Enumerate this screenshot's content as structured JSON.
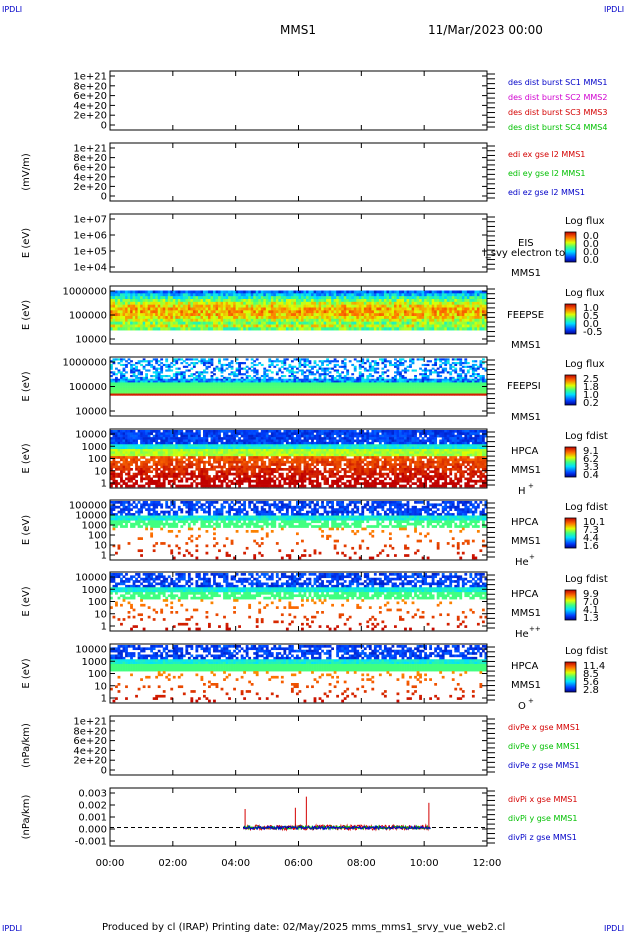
{
  "corner_marks": {
    "top_left": "IPDLI",
    "top_right": "IPDLI",
    "bottom_left": "IPDLI",
    "bottom_right": "IPDLI"
  },
  "header": {
    "spacecraft": "MMS1",
    "date": "11/Mar/2023 00:00"
  },
  "footer": {
    "text": "Produced by cl (IRAP)   Printing date: 02/May/2025   mms_mms1_srvy_vue_web2.cl"
  },
  "time_axis": {
    "ticks": [
      "00:00",
      "02:00",
      "04:00",
      "06:00",
      "08:00",
      "10:00",
      "12:00"
    ],
    "range_hours": [
      0,
      12
    ]
  },
  "colors": {
    "red": "#d40000",
    "green": "#00c000",
    "blue": "#0000c8",
    "magenta": "#d000d0",
    "dashed": "#000000"
  },
  "panels": [
    {
      "id": "des-dist",
      "yticks": [
        "1e+21",
        "8e+20",
        "6e+20",
        "4e+20",
        "2e+20",
        "0"
      ],
      "ylabel": "",
      "legend": [
        {
          "text": "des dist burst SC1 MMS1",
          "color": "#0000c8"
        },
        {
          "text": "des dist burst SC2 MMS2",
          "color": "#d000d0"
        },
        {
          "text": "des dist burst SC3 MMS3",
          "color": "#d40000"
        },
        {
          "text": "des dist burst SC4 MMS4",
          "color": "#00c000"
        }
      ]
    },
    {
      "id": "edi",
      "yticks": [
        "1e+21",
        "8e+20",
        "6e+20",
        "4e+20",
        "2e+20",
        "0"
      ],
      "ylabel": "(mV/m)",
      "legend": [
        {
          "text": "edi ex gse l2 MMS1",
          "color": "#d40000"
        },
        {
          "text": "edi ey gse l2 MMS1",
          "color": "#00c000"
        },
        {
          "text": "edi ez gse l2 MMS1",
          "color": "#0000c8"
        }
      ]
    },
    {
      "id": "eis",
      "yticks": [
        "1e+07",
        "1e+06",
        "1e+05",
        "1e+04"
      ],
      "ylabel": "E (eV)",
      "name_lines": [
        "EIS",
        "MMS1"
      ],
      "overlay_text": "l_svy electron to",
      "cbar_title": "Log flux",
      "cbar_ticks": [
        "0.0",
        "0.0",
        "0.0",
        "0.0"
      ]
    },
    {
      "id": "feepse",
      "yticks": [
        "1000000",
        "100000",
        "10000"
      ],
      "ylabel": "E (eV)",
      "name_lines": [
        "FEEPSE",
        "MMS1"
      ],
      "cbar_title": "Log flux",
      "cbar_ticks": [
        "1.0",
        "0.5",
        "0.0",
        "-0.5"
      ]
    },
    {
      "id": "feepsi",
      "yticks": [
        "1000000",
        "100000",
        "10000"
      ],
      "ylabel": "E (eV)",
      "name_lines": [
        "FEEPSI",
        "MMS1"
      ],
      "cbar_title": "Log flux",
      "cbar_ticks": [
        "2.5",
        "1.8",
        "1.0",
        "0.2"
      ]
    },
    {
      "id": "hpca-h",
      "yticks": [
        "10000",
        "1000",
        "100",
        "10",
        "1"
      ],
      "ylabel": "E (eV)",
      "name_lines": [
        "HPCA",
        "MMS1"
      ],
      "species": "H",
      "species_sup": "+",
      "cbar_title": "Log fdist",
      "cbar_ticks": [
        "9.1",
        "6.2",
        "3.3",
        "0.4"
      ]
    },
    {
      "id": "hpca-he",
      "yticks": [
        "100000",
        "10000",
        "1000",
        "100",
        "10",
        "1"
      ],
      "ylabel": "E (eV)",
      "name_lines": [
        "HPCA",
        "MMS1"
      ],
      "species": "He",
      "species_sup": "+",
      "cbar_title": "Log fdist",
      "cbar_ticks": [
        "10.1",
        "7.3",
        "4.4",
        "1.6"
      ]
    },
    {
      "id": "hpca-he2",
      "yticks": [
        "10000",
        "1000",
        "100",
        "10",
        "1"
      ],
      "ylabel": "E (eV)",
      "name_lines": [
        "HPCA",
        "MMS1"
      ],
      "species": "He",
      "species_sup": "++",
      "cbar_title": "Log fdist",
      "cbar_ticks": [
        "9.9",
        "7.0",
        "4.1",
        "1.3"
      ]
    },
    {
      "id": "hpca-o",
      "yticks": [
        "10000",
        "1000",
        "100",
        "10",
        "1"
      ],
      "ylabel": "E (eV)",
      "name_lines": [
        "HPCA",
        "MMS1"
      ],
      "species": "O",
      "species_sup": "+",
      "cbar_title": "Log fdist",
      "cbar_ticks": [
        "11.4",
        "8.5",
        "5.6",
        "2.8"
      ]
    },
    {
      "id": "divpe",
      "yticks": [
        "1e+21",
        "8e+20",
        "6e+20",
        "4e+20",
        "2e+20",
        "0"
      ],
      "ylabel": "(nPa/km)",
      "legend": [
        {
          "text": "divPe x gse MMS1",
          "color": "#d40000"
        },
        {
          "text": "divPe y gse MMS1",
          "color": "#00c000"
        },
        {
          "text": "divPe z gse MMS1",
          "color": "#0000c8"
        }
      ]
    },
    {
      "id": "divpi",
      "yticks": [
        "0.003",
        "0.002",
        "0.001",
        "0.000",
        "-0.001"
      ],
      "ylabel": "(nPa/km)",
      "legend": [
        {
          "text": "divPi x gse MMS1",
          "color": "#d40000"
        },
        {
          "text": "divPi y gse MMS1",
          "color": "#00c000"
        },
        {
          "text": "divPi z gse MMS1",
          "color": "#0000c8"
        }
      ]
    }
  ],
  "chart_data": [
    {
      "type": "line",
      "id": "des-dist",
      "ylim": [
        0,
        1e+21
      ],
      "series": [],
      "note_dashed_zero": true
    },
    {
      "type": "line",
      "id": "edi",
      "ylabel": "(mV/m)",
      "ylim": [
        0,
        1e+21
      ],
      "series": [],
      "note_dashed_zero": true
    },
    {
      "type": "heatmap",
      "id": "eis",
      "ylabel": "E (eV)",
      "ylim": [
        10000,
        10000000
      ],
      "yscale": "log",
      "x_coverage_hours": []
    },
    {
      "type": "heatmap",
      "id": "feepse",
      "ylabel": "E (eV)",
      "ylim": [
        10000,
        1000000
      ],
      "yscale": "log",
      "x_coverage_hours": [
        0,
        12
      ],
      "energy_band": [
        30000,
        700000
      ]
    },
    {
      "type": "heatmap",
      "id": "feepsi",
      "ylabel": "E (eV)",
      "ylim": [
        10000,
        1000000
      ],
      "yscale": "log",
      "x_coverage_hours": [
        0,
        12
      ],
      "energy_band": [
        50000,
        900000
      ]
    },
    {
      "type": "heatmap",
      "id": "hpca-h",
      "ylabel": "E (eV)",
      "ylim": [
        1,
        40000
      ],
      "yscale": "log",
      "x_coverage_hours": [
        0,
        12
      ]
    },
    {
      "type": "heatmap",
      "id": "hpca-he",
      "ylabel": "E (eV)",
      "ylim": [
        1,
        100000
      ],
      "yscale": "log",
      "x_coverage_hours": [
        0,
        12
      ]
    },
    {
      "type": "heatmap",
      "id": "hpca-he2",
      "ylabel": "E (eV)",
      "ylim": [
        1,
        10000
      ],
      "yscale": "log",
      "x_coverage_hours": [
        0,
        12
      ]
    },
    {
      "type": "heatmap",
      "id": "hpca-o",
      "ylabel": "E (eV)",
      "ylim": [
        1,
        10000
      ],
      "yscale": "log",
      "x_coverage_hours": [
        0,
        12
      ]
    },
    {
      "type": "line",
      "id": "divpe",
      "ylabel": "(nPa/km)",
      "ylim": [
        0,
        1e+21
      ],
      "series": [],
      "note_dashed_zero": true
    },
    {
      "type": "line",
      "id": "divpi",
      "ylabel": "(nPa/km)",
      "ylim": [
        -0.0015,
        0.0032
      ],
      "x_range_hours": [
        4.25,
        10.2
      ],
      "series": [
        {
          "name": "divPi x gse MMS1",
          "color": "#d40000",
          "spikes": [
            [
              4.3,
              0.0015
            ],
            [
              5.9,
              0.0016
            ],
            [
              6.25,
              0.0025
            ],
            [
              10.15,
              0.002
            ]
          ]
        },
        {
          "name": "divPi y gse MMS1",
          "color": "#00c000",
          "spikes": []
        },
        {
          "name": "divPi z gse MMS1",
          "color": "#0000c8",
          "spikes": []
        }
      ]
    }
  ]
}
